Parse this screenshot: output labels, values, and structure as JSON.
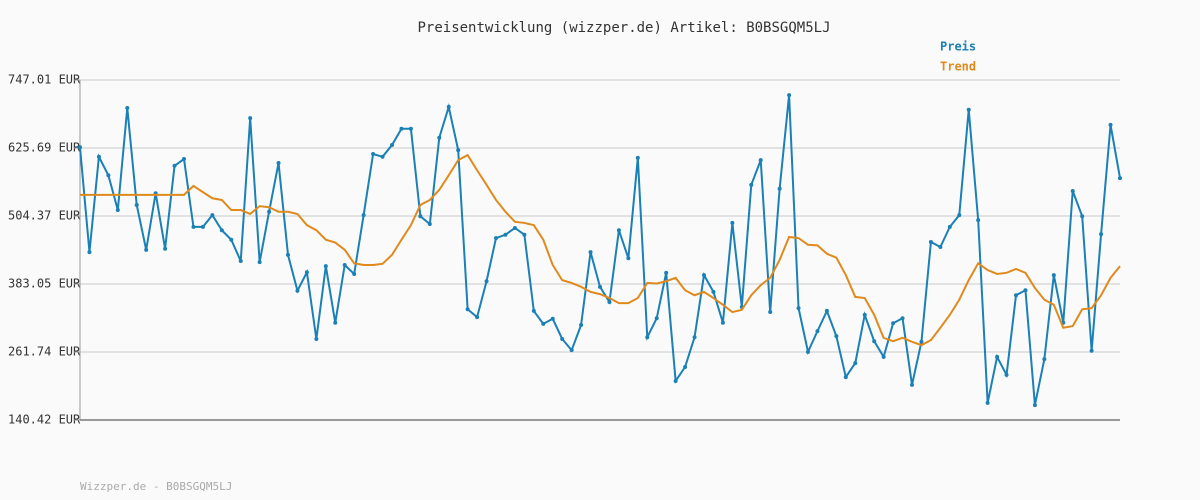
{
  "chart_data": {
    "type": "line",
    "title": "Preisentwicklung (wizzper.de) Artikel: B0BSGQM5LJ",
    "footer": "Wizzper.de - B0BSGQM5LJ",
    "ylim": [
      140.42,
      747.01
    ],
    "yticks": [
      {
        "value": 140.42,
        "label": "140.42 EUR"
      },
      {
        "value": 261.74,
        "label": "261.74 EUR"
      },
      {
        "value": 383.05,
        "label": "383.05 EUR"
      },
      {
        "value": 504.37,
        "label": "504.37 EUR"
      },
      {
        "value": 625.69,
        "label": "625.69 EUR"
      },
      {
        "value": 747.01,
        "label": "747.01 EUR"
      }
    ],
    "grid": true,
    "series": [
      {
        "name": "Preis",
        "color": "#1a80b6",
        "values": [
          627,
          440,
          610,
          577,
          515,
          697,
          524,
          444,
          545,
          446,
          594,
          606,
          485,
          485,
          506,
          479,
          462,
          424,
          679,
          422,
          512,
          599,
          435,
          371,
          404,
          285,
          415,
          314,
          417,
          401,
          506,
          615,
          610,
          631,
          660,
          660,
          504,
          490,
          644,
          699,
          622,
          338,
          324,
          388,
          465,
          471,
          483,
          471,
          335,
          312,
          321,
          285,
          265,
          310,
          440,
          378,
          351,
          479,
          429,
          608,
          288,
          322,
          403,
          210,
          235,
          288,
          399,
          369,
          314,
          492,
          342,
          560,
          604,
          333,
          553,
          720,
          340,
          262,
          299,
          335,
          290,
          217,
          242,
          328,
          281,
          253,
          313,
          322,
          203,
          280,
          458,
          449,
          485,
          506,
          694,
          497,
          171,
          253,
          221,
          363,
          372,
          167,
          249,
          399,
          314,
          549,
          504,
          264,
          472,
          667,
          572
        ]
      },
      {
        "name": "Trend",
        "color": "#e08a1e",
        "values": [
          542,
          542,
          542,
          542,
          542,
          542,
          542,
          542,
          542,
          542,
          542,
          542,
          558,
          547,
          536,
          533,
          515,
          515,
          508,
          522,
          520,
          512,
          512,
          508,
          488,
          479,
          462,
          457,
          444,
          420,
          417,
          417,
          419,
          435,
          462,
          488,
          524,
          533,
          551,
          577,
          604,
          613,
          586,
          560,
          533,
          512,
          494,
          492,
          488,
          462,
          417,
          390,
          385,
          378,
          369,
          365,
          358,
          349,
          349,
          358,
          385,
          384,
          388,
          394,
          372,
          363,
          369,
          358,
          346,
          333,
          337,
          363,
          381,
          394,
          426,
          467,
          465,
          453,
          452,
          437,
          430,
          399,
          360,
          358,
          328,
          287,
          281,
          287,
          280,
          274,
          283,
          305,
          328,
          355,
          390,
          420,
          408,
          401,
          403,
          410,
          403,
          376,
          355,
          346,
          305,
          308,
          338,
          340,
          363,
          394,
          415
        ]
      }
    ]
  }
}
